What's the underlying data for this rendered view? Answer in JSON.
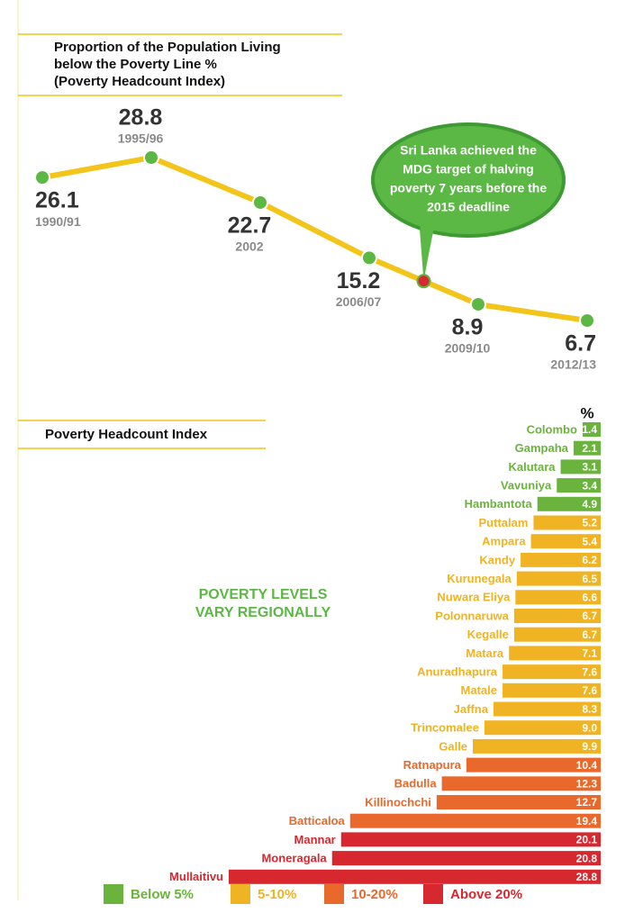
{
  "chart_data": [
    {
      "type": "line",
      "title": [
        "Proportion of the Population Living",
        "below the Poverty Line %",
        "(Poverty Headcount Index)"
      ],
      "categories": [
        "1990/91",
        "1995/96",
        "2002",
        "2006/07",
        "2009/10",
        "2012/13"
      ],
      "values": [
        26.1,
        28.8,
        22.7,
        15.2,
        8.9,
        6.7
      ],
      "color": "#f3c41a",
      "marker_color": "#5cb845",
      "annotation": [
        "Sri Lanka achieved the",
        "MDG target of halving",
        "poverty 7 years before the",
        "2015 deadline"
      ]
    },
    {
      "type": "barh",
      "title": "Poverty Headcount Index",
      "unit": "%",
      "note": [
        "POVERTY LEVELS",
        "VARY REGIONALLY"
      ],
      "categories": [
        "Colombo",
        "Gampaha",
        "Kalutara",
        "Vavuniya",
        "Hambantota",
        "Puttalam",
        "Ampara",
        "Kandy",
        "Kurunegala",
        "Nuwara Eliya",
        "Polonnaruwa",
        "Kegalle",
        "Matara",
        "Anuradhapura",
        "Matale",
        "Jaffna",
        "Trincomalee",
        "Galle",
        "Ratnapura",
        "Badulla",
        "Killinochchi",
        "Batticaloa",
        "Mannar",
        "Moneragala",
        "Mullaitivu"
      ],
      "values": [
        1.4,
        2.1,
        3.1,
        3.4,
        4.9,
        5.2,
        5.4,
        6.2,
        6.5,
        6.6,
        6.7,
        6.7,
        7.1,
        7.6,
        7.6,
        8.3,
        9.0,
        9.9,
        10.4,
        12.3,
        12.7,
        19.4,
        20.1,
        20.8,
        28.8
      ],
      "value_labels": [
        "1.4",
        "2.1",
        "3.1",
        "3.4",
        "4.9",
        "5.2",
        "5.4",
        "6.2",
        "6.5",
        "6.6",
        "6.7",
        "6.7",
        "7.1",
        "7.6",
        "7.6",
        "8.3",
        "9.0",
        "9.9",
        "10.4",
        "12.3",
        "12.7",
        "19.4",
        "20.1",
        "20.8",
        "28.8"
      ],
      "colors": [
        "#6ab43e",
        "#6ab43e",
        "#6ab43e",
        "#6ab43e",
        "#6ab43e",
        "#f0b323",
        "#f0b323",
        "#f0b323",
        "#f0b323",
        "#f0b323",
        "#f0b323",
        "#f0b323",
        "#f0b323",
        "#f0b323",
        "#f0b323",
        "#f0b323",
        "#f0b323",
        "#f0b323",
        "#e8692b",
        "#e8692b",
        "#e8692b",
        "#e8692b",
        "#d7282f",
        "#d7282f",
        "#d7282f"
      ],
      "legend": [
        {
          "name": "Below 5%",
          "color": "#6ab43e"
        },
        {
          "name": "5-10%",
          "color": "#f0b323"
        },
        {
          "name": "10-20%",
          "color": "#e8692b"
        },
        {
          "name": "Above 20%",
          "color": "#d7282f"
        }
      ]
    }
  ]
}
